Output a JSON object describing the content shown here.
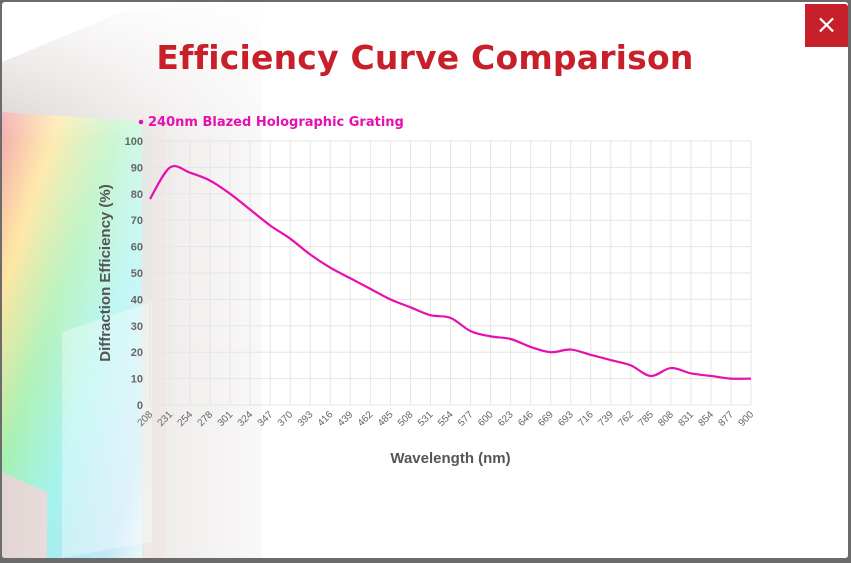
{
  "modal": {
    "title": "Efficiency Curve Comparison",
    "close_label": "×"
  },
  "colors": {
    "accent": "#c8202a",
    "series": "#e60fb0",
    "grid": "#e5e5e5",
    "axis_text": "#666666"
  },
  "icons": {
    "close": "close-icon",
    "legend_marker": "legend-dot-icon"
  },
  "chart_data": {
    "type": "line",
    "title": "",
    "xlabel": "Wavelength (nm)",
    "ylabel": "Diffraction Efficiency (%)",
    "ylim": [
      0,
      100
    ],
    "yticks": [
      0,
      10,
      20,
      30,
      40,
      50,
      60,
      70,
      80,
      90,
      100
    ],
    "categories": [
      "208",
      "231",
      "254",
      "278",
      "301",
      "324",
      "347",
      "370",
      "393",
      "416",
      "439",
      "462",
      "485",
      "508",
      "531",
      "554",
      "577",
      "600",
      "623",
      "646",
      "669",
      "693",
      "716",
      "739",
      "762",
      "785",
      "808",
      "831",
      "854",
      "877",
      "900"
    ],
    "grid": true,
    "legend_position": "top-left",
    "series": [
      {
        "name": "240nm Blazed Holographic Grating",
        "values": [
          78,
          90,
          88,
          85,
          80,
          74,
          68,
          63,
          57,
          52,
          48,
          44,
          40,
          37,
          34,
          33,
          28,
          26,
          25,
          22,
          20,
          21,
          19,
          17,
          15,
          11,
          14,
          12,
          11,
          10,
          10
        ]
      }
    ]
  }
}
